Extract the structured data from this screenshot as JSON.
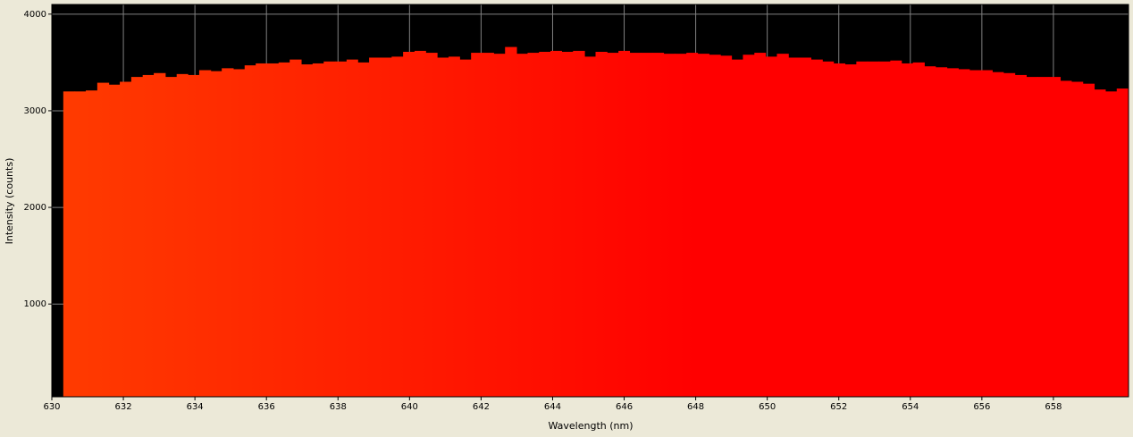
{
  "chart_data": {
    "type": "histogram",
    "xlabel": "Wavelength (nm)",
    "ylabel": "Intensity (counts)",
    "bins": [
      630.32,
      630.64,
      630.95,
      631.27,
      631.59,
      631.9,
      632.22,
      632.54,
      632.85,
      633.17,
      633.49,
      633.8,
      634.12,
      634.44,
      634.75,
      635.07,
      635.39,
      635.7,
      636.02,
      636.34,
      636.65,
      636.97,
      637.29,
      637.6,
      637.92,
      638.24,
      638.55,
      638.87,
      639.19,
      639.5,
      639.82,
      640.14,
      640.45,
      640.77,
      641.09,
      641.4,
      641.72,
      642.04,
      642.35,
      642.67,
      642.99,
      643.3,
      643.62,
      643.94,
      644.25,
      644.57,
      644.89,
      645.2,
      645.52,
      645.84,
      646.15,
      646.47,
      646.79,
      647.1,
      647.42,
      647.74,
      648.05,
      648.37,
      648.69,
      649.0,
      649.32,
      649.64,
      649.95,
      650.27,
      650.59,
      650.9,
      651.22,
      651.54,
      651.85,
      652.17,
      652.49,
      652.8,
      653.12,
      653.44,
      653.75,
      654.07,
      654.39,
      654.7,
      655.02,
      655.34,
      655.65,
      655.97,
      656.29,
      656.6,
      656.92,
      657.24,
      657.55,
      657.87,
      658.19,
      658.5,
      658.82,
      659.14,
      659.45,
      659.77,
      660.09
    ],
    "values": [
      3200,
      3200,
      3210,
      3290,
      3270,
      3300,
      3350,
      3370,
      3390,
      3350,
      3380,
      3370,
      3420,
      3410,
      3440,
      3430,
      3470,
      3490,
      3490,
      3500,
      3530,
      3480,
      3490,
      3510,
      3510,
      3530,
      3500,
      3550,
      3550,
      3560,
      3610,
      3620,
      3600,
      3550,
      3560,
      3530,
      3600,
      3600,
      3590,
      3660,
      3590,
      3600,
      3610,
      3620,
      3610,
      3620,
      3560,
      3610,
      3600,
      3620,
      3600,
      3600,
      3600,
      3590,
      3590,
      3600,
      3590,
      3580,
      3570,
      3530,
      3580,
      3600,
      3560,
      3590,
      3550,
      3550,
      3530,
      3510,
      3490,
      3480,
      3510,
      3510,
      3510,
      3520,
      3490,
      3500,
      3460,
      3450,
      3440,
      3430,
      3420,
      3420,
      3400,
      3390,
      3370,
      3350,
      3350,
      3350,
      3310,
      3300,
      3280,
      3220,
      3200,
      3230
    ],
    "colors": [
      "#ff3c00",
      "#ff0000"
    ],
    "xlim": [
      630,
      660.1
    ],
    "xticks": [
      630,
      632,
      634,
      636,
      638,
      640,
      642,
      644,
      646,
      648,
      650,
      652,
      654,
      656,
      658
    ],
    "ylim": [
      40,
      4100
    ],
    "yticks": [
      1000,
      2000,
      3000,
      4000
    ],
    "grid": true
  }
}
